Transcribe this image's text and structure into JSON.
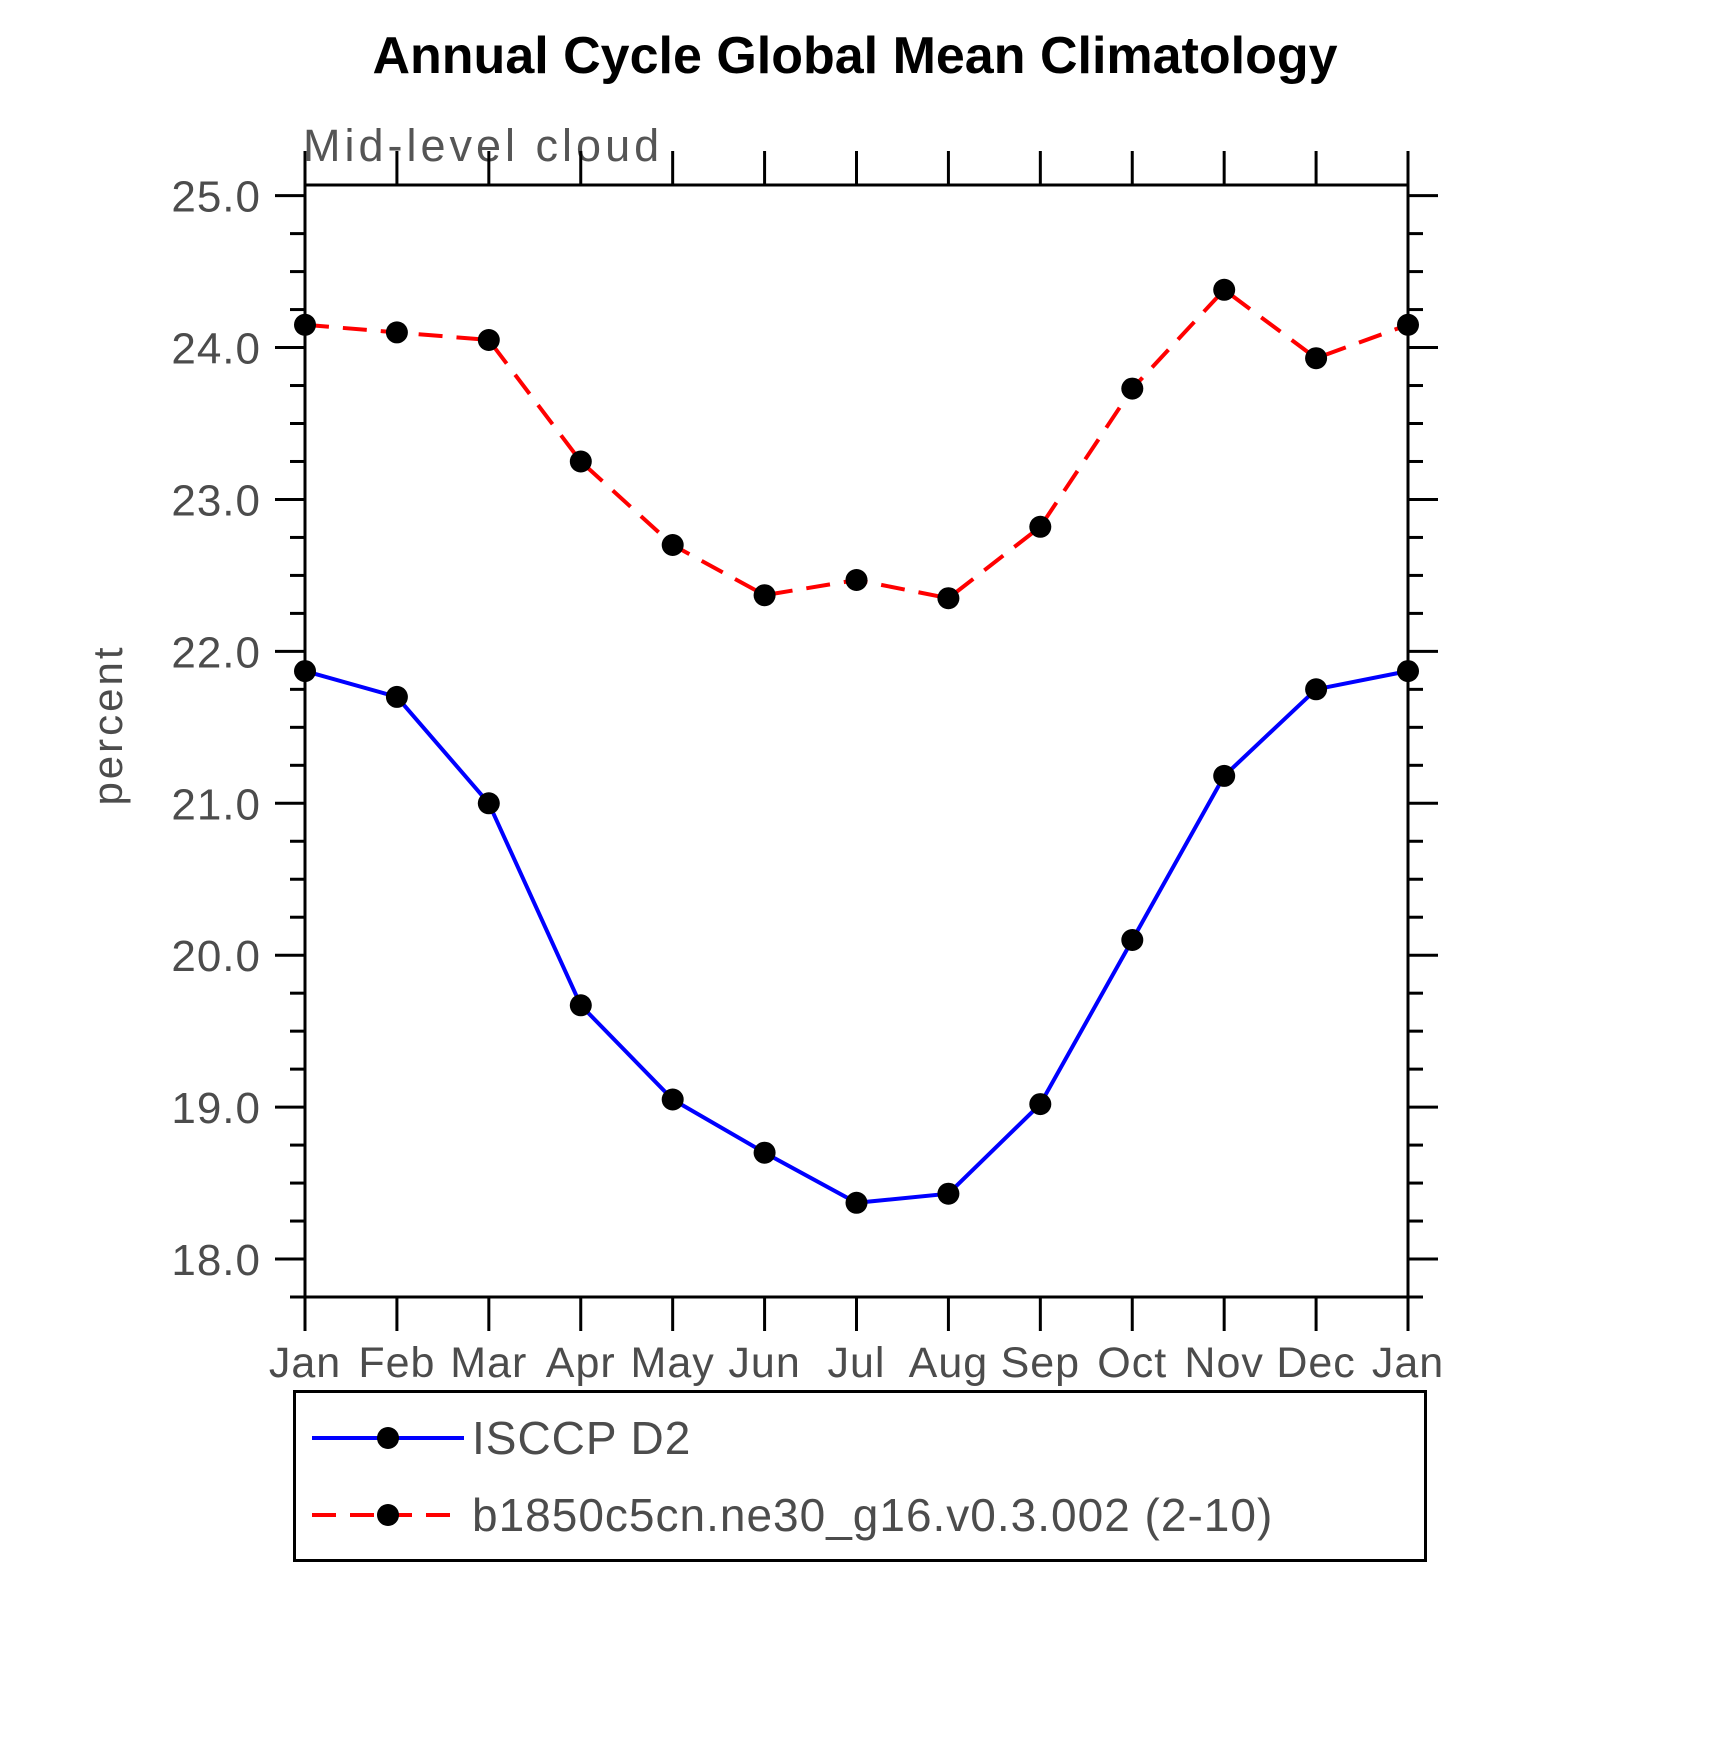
{
  "chart_data": {
    "type": "line",
    "title": "Annual Cycle Global Mean Climatology",
    "subtitle": "Mid-level cloud",
    "xlabel": "",
    "ylabel": "percent",
    "categories": [
      "Jan",
      "Feb",
      "Mar",
      "Apr",
      "May",
      "Jun",
      "Jul",
      "Aug",
      "Sep",
      "Oct",
      "Nov",
      "Dec",
      "Jan"
    ],
    "ylim": [
      17.75,
      25.07
    ],
    "yticks": [
      18.0,
      19.0,
      20.0,
      21.0,
      22.0,
      23.0,
      24.0,
      25.0
    ],
    "y_minor_tick_step": 0.25,
    "grid": false,
    "legend_position": "bottom",
    "marker": "filled-circle",
    "marker_color": "#000000",
    "series": [
      {
        "name": "ISCCP D2",
        "color": "#0000ff",
        "style": "solid",
        "values": [
          21.87,
          21.7,
          21.0,
          19.67,
          19.05,
          18.7,
          18.37,
          18.43,
          19.02,
          20.1,
          21.18,
          21.75,
          21.87
        ]
      },
      {
        "name": "b1850c5cn.ne30_g16.v0.3.002 (2-10)",
        "color": "#ff0000",
        "style": "dashed",
        "dash": "24 14",
        "values": [
          24.15,
          24.1,
          24.05,
          23.25,
          22.7,
          22.37,
          22.47,
          22.35,
          22.82,
          23.73,
          24.38,
          23.93,
          24.15
        ]
      }
    ]
  }
}
